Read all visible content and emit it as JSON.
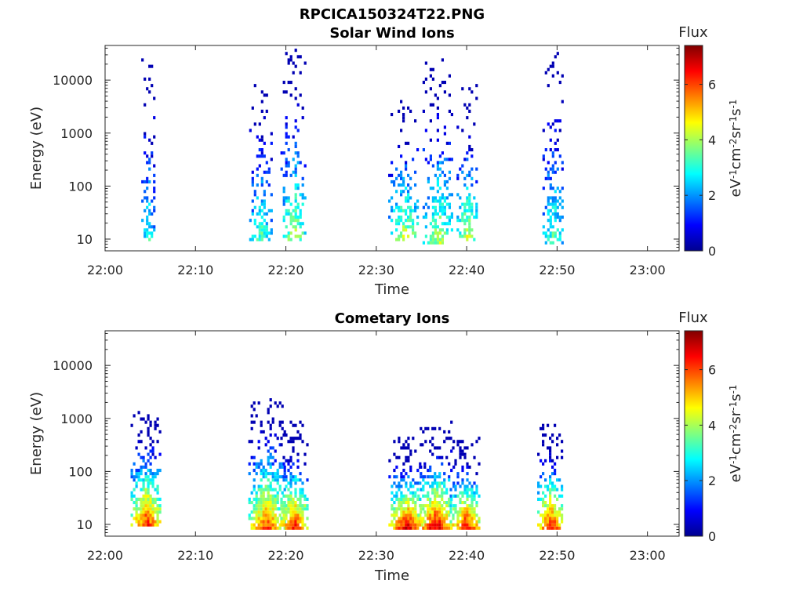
{
  "figure_title": "RPCICA150324T22.PNG",
  "colorbar": {
    "title": "Flux",
    "label_html": "eV<sup>-1</sup>cm<sup>-2</sup>sr<sup>-1</sup>s<sup>-1</sup>",
    "label_parts": [
      "eV",
      "-1",
      "cm",
      "-2",
      "sr",
      "-1",
      "s",
      "-1"
    ],
    "range": [
      0,
      7.4
    ],
    "ticks": [
      "0",
      "2",
      "4",
      "6"
    ],
    "colormap": "jet"
  },
  "chart_data": [
    {
      "type": "heatmap",
      "title": "Solar Wind Ions",
      "xlabel": "Time",
      "ylabel": "Energy (eV)",
      "x_ticks": [
        "22:00",
        "22:10",
        "22:20",
        "22:30",
        "22:40",
        "22:50",
        "23:00"
      ],
      "x_range_minutes": [
        0,
        63.5
      ],
      "y_scale": "log",
      "y_ticks": [
        "10",
        "100",
        "1000",
        "10000"
      ],
      "y_range": [
        6,
        45000
      ],
      "clusters": [
        {
          "t": 4.7,
          "w": 0.5,
          "e_low": 8,
          "e_high": 28000,
          "peak_flux": 3.2,
          "density": 0.35
        },
        {
          "t": 17.2,
          "w": 0.9,
          "e_low": 8,
          "e_high": 18000,
          "peak_flux": 3.5,
          "density": 0.3
        },
        {
          "t": 20.8,
          "w": 1.0,
          "e_low": 8,
          "e_high": 38000,
          "peak_flux": 4.3,
          "density": 0.3
        },
        {
          "t": 33.0,
          "w": 1.2,
          "e_low": 8,
          "e_high": 5000,
          "peak_flux": 4.5,
          "density": 0.3
        },
        {
          "t": 36.8,
          "w": 1.2,
          "e_low": 7,
          "e_high": 30000,
          "peak_flux": 4.2,
          "density": 0.3
        },
        {
          "t": 40.0,
          "w": 0.8,
          "e_low": 8,
          "e_high": 8000,
          "peak_flux": 4.6,
          "density": 0.3
        },
        {
          "t": 49.5,
          "w": 0.8,
          "e_low": 7,
          "e_high": 30000,
          "peak_flux": 3.6,
          "density": 0.3
        }
      ]
    },
    {
      "type": "heatmap",
      "title": "Cometary Ions",
      "xlabel": "Time",
      "ylabel": "Energy (eV)",
      "x_ticks": [
        "22:00",
        "22:10",
        "22:20",
        "22:30",
        "22:40",
        "22:50",
        "23:00"
      ],
      "x_range_minutes": [
        0,
        63.5
      ],
      "y_scale": "log",
      "y_ticks": [
        "10",
        "100",
        "1000",
        "10000"
      ],
      "y_range": [
        6,
        45000
      ],
      "clusters": [
        {
          "t": 4.5,
          "w": 1.2,
          "e_low": 8,
          "e_high": 1300,
          "peak_flux": 6.6,
          "density": 0.6
        },
        {
          "t": 17.8,
          "w": 1.4,
          "e_low": 7,
          "e_high": 2400,
          "peak_flux": 6.3,
          "density": 0.55
        },
        {
          "t": 20.8,
          "w": 1.2,
          "e_low": 7,
          "e_high": 800,
          "peak_flux": 6.8,
          "density": 0.55
        },
        {
          "t": 33.3,
          "w": 1.4,
          "e_low": 7,
          "e_high": 400,
          "peak_flux": 7.2,
          "density": 0.6
        },
        {
          "t": 36.5,
          "w": 1.4,
          "e_low": 7,
          "e_high": 900,
          "peak_flux": 7.2,
          "density": 0.6
        },
        {
          "t": 39.8,
          "w": 1.2,
          "e_low": 7,
          "e_high": 400,
          "peak_flux": 7.0,
          "density": 0.55
        },
        {
          "t": 49.2,
          "w": 1.0,
          "e_low": 7,
          "e_high": 700,
          "peak_flux": 7.0,
          "density": 0.55
        }
      ]
    }
  ]
}
